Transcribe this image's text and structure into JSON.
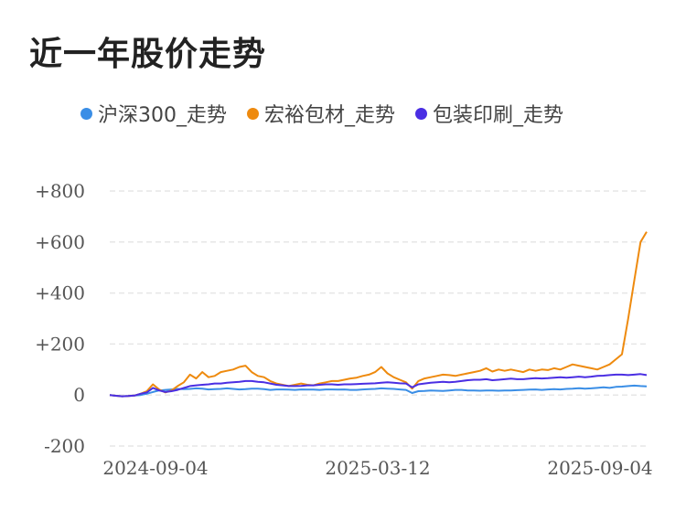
{
  "title": "近一年股价走势",
  "chart_data": {
    "type": "line",
    "yticks": [
      "+800",
      "+600",
      "+400",
      "+200",
      "0",
      "-200"
    ],
    "ytick_values": [
      800,
      600,
      400,
      200,
      0,
      -200
    ],
    "ylim": [
      -200,
      800
    ],
    "xticks": [
      "2024-09-04",
      "2025-03-12",
      "2025-09-04"
    ],
    "grid": true,
    "legend_position": "top",
    "series": [
      {
        "name": "沪深300_走势",
        "color": "#3a8ee6",
        "values": [
          0,
          -3,
          -5,
          -4,
          -2,
          0,
          5,
          12,
          18,
          20,
          22,
          24,
          23,
          24,
          26,
          25,
          22,
          23,
          24,
          26,
          24,
          22,
          23,
          25,
          25,
          23,
          20,
          22,
          22,
          21,
          20,
          22,
          21,
          21,
          20,
          22,
          22,
          21,
          22,
          20,
          20,
          22,
          23,
          24,
          26,
          25,
          24,
          22,
          20,
          8,
          15,
          16,
          18,
          17,
          16,
          18,
          20,
          20,
          18,
          18,
          17,
          18,
          18,
          17,
          18,
          18,
          19,
          20,
          21,
          22,
          20,
          22,
          23,
          22,
          24,
          25,
          27,
          25,
          26,
          28,
          30,
          28,
          32,
          33,
          35,
          37,
          35,
          34
        ]
      },
      {
        "name": "宏裕包材_走势",
        "color": "#ee8a0e",
        "values": [
          0,
          -3,
          -5,
          -4,
          -2,
          5,
          15,
          42,
          22,
          10,
          18,
          35,
          50,
          80,
          65,
          90,
          70,
          75,
          90,
          95,
          100,
          110,
          115,
          90,
          75,
          70,
          55,
          45,
          40,
          35,
          40,
          45,
          40,
          38,
          45,
          50,
          55,
          55,
          60,
          65,
          68,
          75,
          80,
          90,
          110,
          85,
          70,
          60,
          50,
          25,
          55,
          65,
          70,
          75,
          80,
          78,
          75,
          80,
          85,
          90,
          95,
          105,
          92,
          100,
          95,
          100,
          95,
          90,
          100,
          95,
          100,
          98,
          105,
          100,
          110,
          120,
          115,
          110,
          105,
          100,
          110,
          120,
          140,
          160,
          300,
          450,
          600,
          640
        ]
      },
      {
        "name": "包装印刷_走势",
        "color": "#4a2ee3",
        "values": [
          0,
          -3,
          -5,
          -4,
          -2,
          5,
          10,
          28,
          18,
          12,
          15,
          20,
          28,
          35,
          38,
          40,
          42,
          45,
          45,
          48,
          50,
          52,
          55,
          55,
          52,
          50,
          45,
          40,
          38,
          35,
          35,
          36,
          38,
          38,
          40,
          42,
          42,
          40,
          42,
          42,
          43,
          44,
          45,
          46,
          48,
          50,
          48,
          46,
          45,
          30,
          42,
          45,
          48,
          50,
          52,
          50,
          52,
          55,
          58,
          60,
          60,
          62,
          58,
          60,
          62,
          64,
          62,
          62,
          64,
          66,
          65,
          66,
          68,
          70,
          68,
          70,
          72,
          70,
          72,
          75,
          76,
          78,
          80,
          80,
          78,
          80,
          82,
          78
        ]
      }
    ]
  }
}
